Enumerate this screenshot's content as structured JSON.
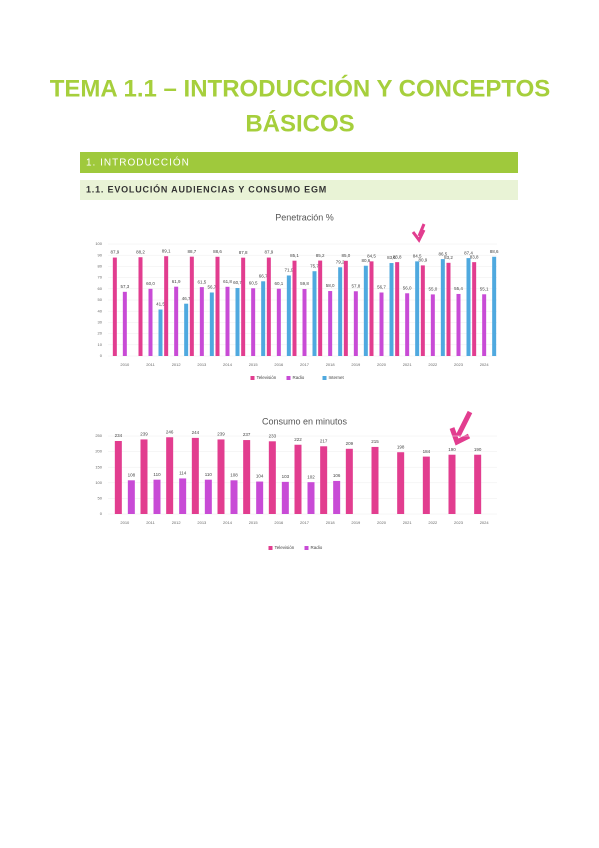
{
  "header": {
    "title_line1": "TEMA 1.1 – INTRODUCCIÓN Y CONCEPTOS",
    "title_line2": "BÁSICOS"
  },
  "sections": {
    "section": "1. INTRODUCCIÓN",
    "subsection": "1.1. EVOLUCIÓN AUDIENCIAS Y CONSUMO EGM"
  },
  "chart_data": [
    {
      "type": "bar",
      "title": "Penetración %",
      "categories": [
        "2010",
        "2011",
        "2012",
        "2013",
        "2014",
        "2015",
        "2016",
        "2017",
        "2018",
        "2019",
        "2020",
        "2021",
        "2022",
        "2023",
        "2024"
      ],
      "ylim": [
        0,
        100
      ],
      "yticks": [
        0,
        10,
        20,
        30,
        40,
        50,
        60,
        70,
        80,
        90,
        100
      ],
      "series": [
        {
          "name": "Televisión",
          "color": "#e23d8f",
          "values": [
            87.9,
            88.2,
            89.1,
            88.7,
            88.6,
            87.8,
            87.9,
            85.1,
            85.2,
            85.0,
            84.5,
            83.8,
            80.9,
            83.2,
            83.8
          ],
          "value_labels": [
            "87,9",
            "88,2",
            "89,1",
            "88,7",
            "88,6",
            "87,8",
            "87,9",
            "85,1",
            "85,2",
            "85,0",
            "84,5",
            "83,8",
            "80,9",
            "83,2",
            "83,8"
          ]
        },
        {
          "name": "Radio",
          "color": "#c84bd6",
          "values": [
            57.3,
            60.0,
            61.9,
            61.5,
            61.8,
            60.5,
            60.1,
            59.8,
            58.0,
            57.8,
            56.7,
            56.0,
            55.0,
            55.4,
            55.1
          ],
          "value_labels": [
            "57,3",
            "60,0",
            "61,9",
            "61,5",
            "61,8",
            "60,5",
            "60,1",
            "59,8",
            "58,0",
            "57,8",
            "56,7",
            "56,0",
            "55,0",
            "55,4",
            "55,1"
          ]
        },
        {
          "name": "Internet",
          "color": "#4fa9df",
          "values": [
            null,
            41.5,
            46.7,
            56.7,
            60.7,
            66.7,
            71.9,
            75.7,
            79.2,
            80.6,
            83.0,
            84.5,
            86.5,
            87.4,
            88.6
          ],
          "value_labels": [
            null,
            "41,5",
            "46,7",
            "56,7",
            "60,7",
            "66,7",
            "71,9",
            "75,7",
            "79,2",
            "80,6",
            "83,0",
            "84,5",
            "86,5",
            "87,4",
            "88,6"
          ]
        }
      ]
    },
    {
      "type": "bar",
      "title": "Consumo en minutos",
      "categories": [
        "2010",
        "2011",
        "2012",
        "2013",
        "2014",
        "2015",
        "2016",
        "2017",
        "2018",
        "2019",
        "2020",
        "2021",
        "2022",
        "2023",
        "2024"
      ],
      "ylim": [
        0,
        250
      ],
      "yticks": [
        0,
        50,
        100,
        150,
        200,
        250
      ],
      "series": [
        {
          "name": "Televisión",
          "color": "#e23d8f",
          "values": [
            234,
            239,
            246,
            244,
            239,
            237,
            233,
            222,
            217,
            209,
            215,
            198,
            184,
            190,
            190
          ]
        },
        {
          "name": "Radio",
          "color": "#c84bd6",
          "values": [
            108,
            110,
            114,
            110,
            108,
            104,
            103,
            102,
            106,
            null,
            null,
            null,
            null,
            null,
            null
          ]
        }
      ]
    }
  ]
}
